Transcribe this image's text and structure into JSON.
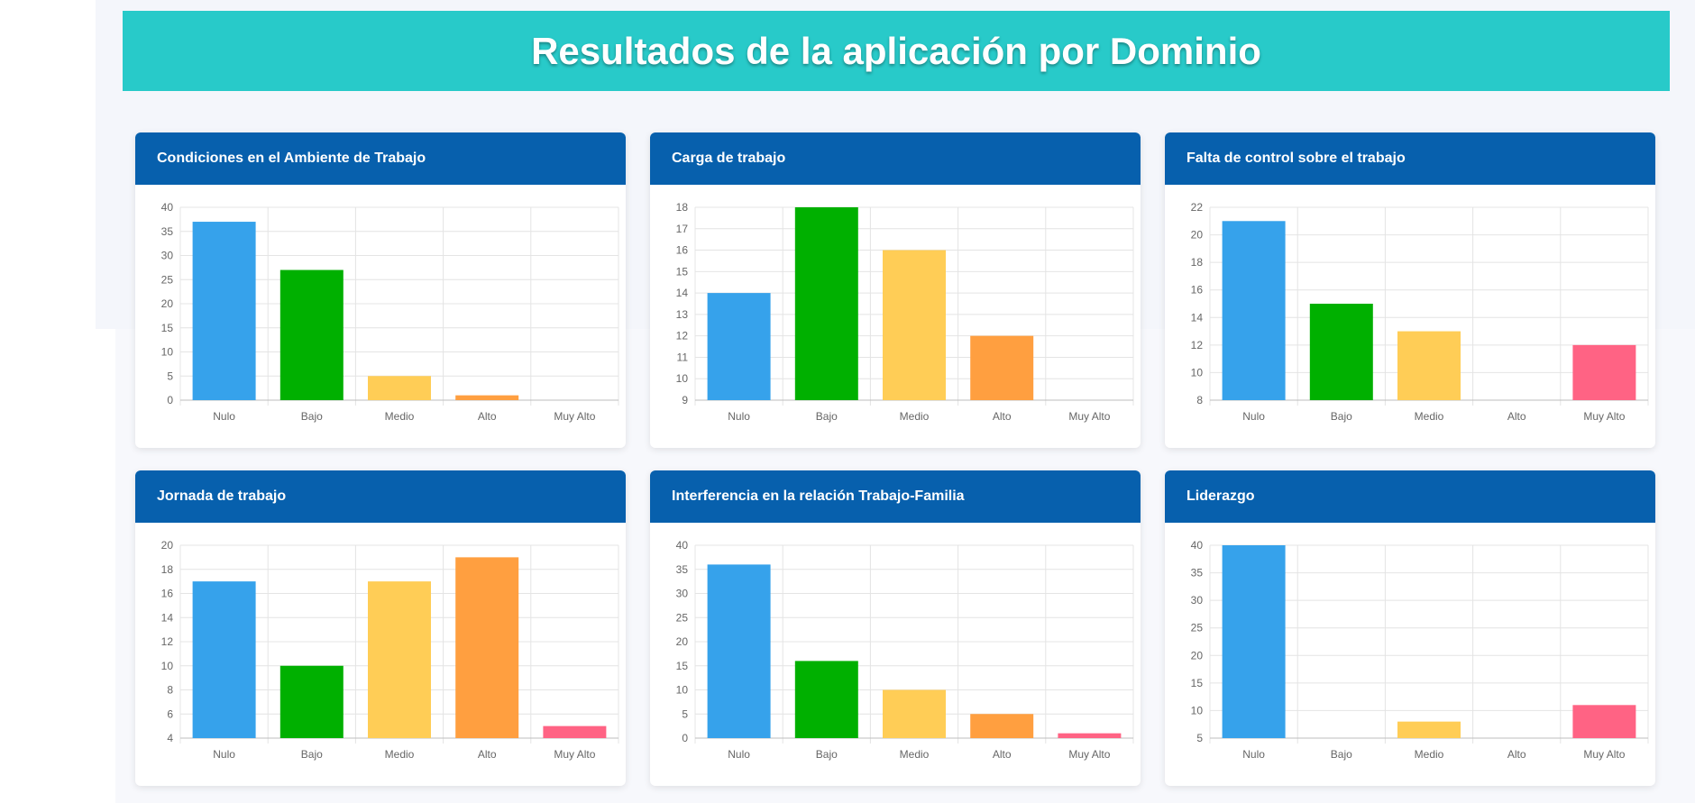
{
  "page": {
    "title": "Resultados de la aplicación por Dominio"
  },
  "colors": {
    "Nulo": "#36a2eb",
    "Bajo": "#00b000",
    "Medio": "#ffcd56",
    "Alto": "#ff9f40",
    "Muy Alto": "#ff6384",
    "header_bg": "#0760ad",
    "banner_bg": "#28cac9"
  },
  "chart_data": [
    {
      "type": "bar",
      "title": "Condiciones en el Ambiente de Trabajo",
      "categories": [
        "Nulo",
        "Bajo",
        "Medio",
        "Alto",
        "Muy Alto"
      ],
      "values": [
        37,
        27,
        5,
        1,
        0
      ],
      "ylim": [
        0,
        40
      ],
      "yticks": [
        0,
        5,
        10,
        15,
        20,
        25,
        30,
        35,
        40
      ],
      "grid": true
    },
    {
      "type": "bar",
      "title": "Carga de trabajo",
      "categories": [
        "Nulo",
        "Bajo",
        "Medio",
        "Alto",
        "Muy Alto"
      ],
      "values": [
        14,
        18,
        16,
        12,
        9
      ],
      "ylim": [
        9,
        18
      ],
      "yticks": [
        9,
        10,
        11,
        12,
        13,
        14,
        15,
        16,
        17,
        18
      ],
      "grid": true
    },
    {
      "type": "bar",
      "title": "Falta de control sobre el trabajo",
      "categories": [
        "Nulo",
        "Bajo",
        "Medio",
        "Alto",
        "Muy Alto"
      ],
      "values": [
        21,
        15,
        13,
        8,
        12
      ],
      "ylim": [
        8,
        22
      ],
      "yticks": [
        8,
        10,
        12,
        14,
        16,
        18,
        20,
        22
      ],
      "grid": true
    },
    {
      "type": "bar",
      "title": "Jornada de trabajo",
      "categories": [
        "Nulo",
        "Bajo",
        "Medio",
        "Alto",
        "Muy Alto"
      ],
      "values": [
        17,
        10,
        17,
        19,
        5
      ],
      "ylim": [
        4,
        20
      ],
      "yticks": [
        4,
        6,
        8,
        10,
        12,
        14,
        16,
        18,
        20
      ],
      "grid": true
    },
    {
      "type": "bar",
      "title": "Interferencia en la relación Trabajo-Familia",
      "categories": [
        "Nulo",
        "Bajo",
        "Medio",
        "Alto",
        "Muy Alto"
      ],
      "values": [
        36,
        16,
        10,
        5,
        1
      ],
      "ylim": [
        0,
        40
      ],
      "yticks": [
        0,
        5,
        10,
        15,
        20,
        25,
        30,
        35,
        40
      ],
      "grid": true
    },
    {
      "type": "bar",
      "title": "Liderazgo",
      "categories": [
        "Nulo",
        "Bajo",
        "Medio",
        "Alto",
        "Muy Alto"
      ],
      "values": [
        40,
        5,
        8,
        5,
        11
      ],
      "ylim": [
        5,
        40
      ],
      "yticks": [
        5,
        10,
        15,
        20,
        25,
        30,
        35,
        40
      ],
      "grid": true
    }
  ]
}
